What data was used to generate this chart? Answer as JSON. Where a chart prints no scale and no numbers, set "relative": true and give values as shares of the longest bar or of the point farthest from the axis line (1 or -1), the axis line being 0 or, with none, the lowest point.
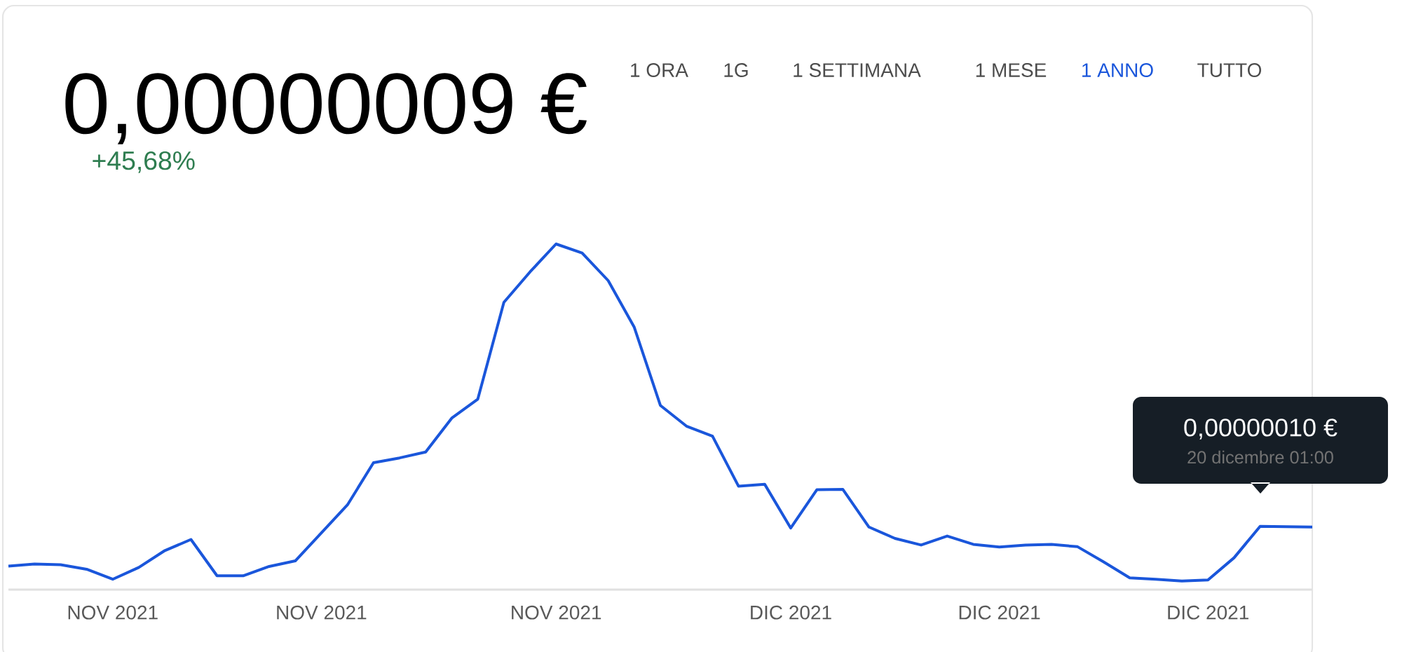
{
  "chart_data": {
    "type": "line",
    "title": "0,00000009 €",
    "subtitle": "+45,68%",
    "relative": true,
    "categories": [
      null,
      null,
      null,
      null,
      "NOV 2021",
      null,
      null,
      null,
      null,
      null,
      null,
      null,
      "NOV 2021",
      null,
      null,
      null,
      null,
      null,
      null,
      null,
      null,
      "NOV 2021",
      null,
      null,
      null,
      null,
      null,
      null,
      null,
      null,
      "DIC 2021",
      null,
      null,
      null,
      null,
      null,
      null,
      null,
      "DIC 2021",
      null,
      null,
      null,
      null,
      null,
      null,
      null,
      "DIC 2021",
      null,
      null,
      null,
      null
    ],
    "series": [
      {
        "color": "#1a56db",
        "values": [
          0.068,
          0.074,
          0.072,
          0.059,
          0.03,
          0.064,
          0.113,
          0.145,
          0.04,
          0.04,
          0.067,
          0.083,
          0.164,
          0.245,
          0.367,
          0.381,
          0.398,
          0.496,
          0.551,
          0.831,
          0.919,
          1,
          0.974,
          0.894,
          0.759,
          0.533,
          0.473,
          0.444,
          0.299,
          0.305,
          0.178,
          0.289,
          0.29,
          0.181,
          0.148,
          0.129,
          0.155,
          0.131,
          0.123,
          0.129,
          0.131,
          0.124,
          0.08,
          0.034,
          0.03,
          0.025,
          0.028,
          0.092,
          0.183,
          0.182,
          0.181
        ]
      }
    ],
    "annotations": [
      "1 ORA",
      "1G",
      "1 SETTIMANA",
      "1 MESE",
      "1 ANNO",
      "TUTTO",
      "0,00000010 €",
      "20 dicembre 01:00"
    ],
    "marker": "none",
    "line_style": "solid"
  }
}
